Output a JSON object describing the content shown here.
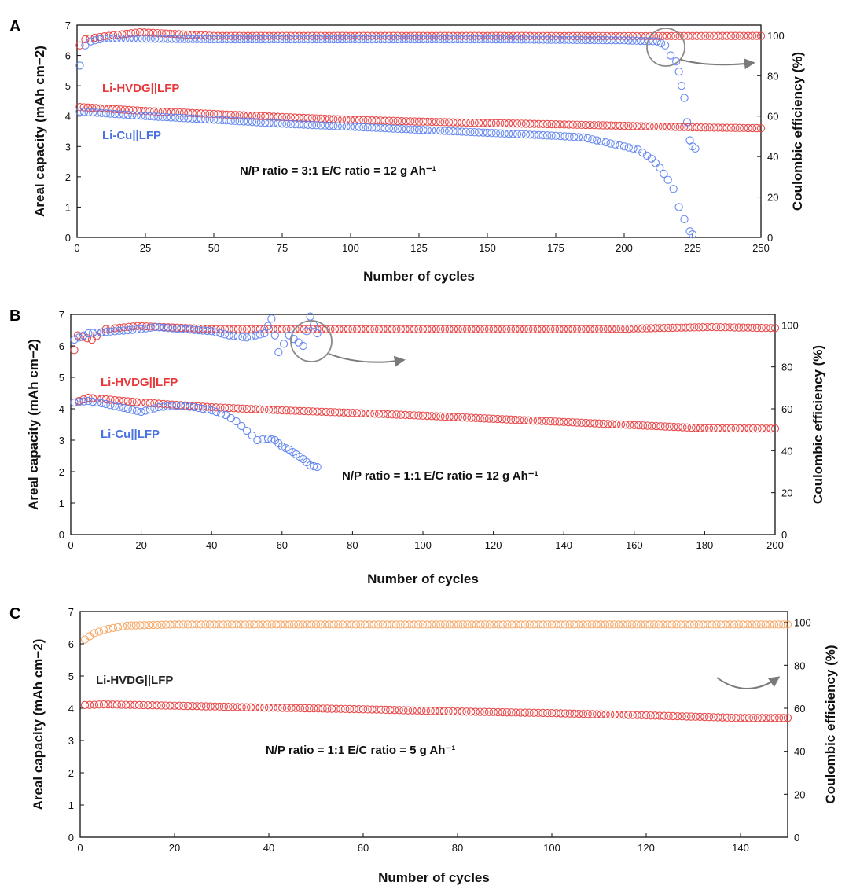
{
  "chart_data": [
    {
      "panel": "A",
      "type": "scatter",
      "xlabel": "Number of cycles",
      "ylabel_left": "Areal capacity (mAh cm−2)",
      "ylabel_right": "Coulombic efficiency (%)",
      "xlim": [
        0,
        250
      ],
      "ylim_left": [
        0,
        7
      ],
      "ylim_right": [
        0,
        105
      ],
      "xticks": [
        0,
        25,
        50,
        75,
        100,
        125,
        150,
        175,
        200,
        225,
        250
      ],
      "yticks_left": [
        0,
        1,
        2,
        3,
        4,
        5,
        6,
        7
      ],
      "yticks_right": [
        0,
        20,
        40,
        60,
        80,
        100
      ],
      "annotation": "N/P ratio = 3:1     E/C ratio = 12 g Ah⁻¹",
      "series": [
        {
          "name": "Li-HVDG||LFP",
          "label_color": "#e8383a",
          "marker_color": "#e8383a",
          "axis": "left",
          "label_shown": true,
          "points": [
            [
              1,
              4.3
            ],
            [
              10,
              4.25
            ],
            [
              25,
              4.17
            ],
            [
              50,
              4.07
            ],
            [
              75,
              3.97
            ],
            [
              100,
              3.88
            ],
            [
              125,
              3.82
            ],
            [
              150,
              3.77
            ],
            [
              175,
              3.73
            ],
            [
              200,
              3.68
            ],
            [
              225,
              3.63
            ],
            [
              250,
              3.6
            ]
          ]
        },
        {
          "name": "Li-HVDG||LFP CE",
          "marker_color": "#e8383a",
          "axis": "right",
          "label_shown": false,
          "points": [
            [
              1,
              95
            ],
            [
              3,
              98
            ],
            [
              10,
              99.5
            ],
            [
              23,
              101.5
            ],
            [
              50,
              99.7
            ],
            [
              100,
              99.7
            ],
            [
              150,
              99.7
            ],
            [
              200,
              99.6
            ],
            [
              250,
              99.7
            ]
          ]
        },
        {
          "name": "Li-Cu||LFP",
          "label_color": "#4a72e0",
          "marker_color": "#5a7ff0",
          "axis": "left",
          "label_shown": true,
          "points": [
            [
              1,
              4.15
            ],
            [
              25,
              4.0
            ],
            [
              50,
              3.88
            ],
            [
              75,
              3.75
            ],
            [
              100,
              3.65
            ],
            [
              125,
              3.55
            ],
            [
              150,
              3.45
            ],
            [
              175,
              3.35
            ],
            [
              185,
              3.3
            ],
            [
              195,
              3.1
            ],
            [
              205,
              2.9
            ],
            [
              210,
              2.6
            ],
            [
              213,
              2.3
            ],
            [
              216,
              1.9
            ],
            [
              218,
              1.6
            ],
            [
              220,
              1.0
            ],
            [
              222,
              0.6
            ],
            [
              224,
              0.2
            ],
            [
              225,
              0.1
            ]
          ]
        },
        {
          "name": "Li-Cu||LFP CE",
          "marker_color": "#5a7ff0",
          "axis": "right",
          "label_shown": false,
          "points": [
            [
              1,
              85
            ],
            [
              3,
              95
            ],
            [
              5,
              97
            ],
            [
              10,
              98.5
            ],
            [
              50,
              98
            ],
            [
              100,
              98
            ],
            [
              150,
              98
            ],
            [
              200,
              97.5
            ],
            [
              212,
              97
            ],
            [
              215,
              95
            ],
            [
              217,
              90
            ],
            [
              219,
              87
            ],
            [
              220,
              82
            ],
            [
              221,
              75
            ],
            [
              222,
              69
            ],
            [
              223,
              57
            ],
            [
              224,
              48
            ],
            [
              225,
              45
            ],
            [
              226,
              44
            ]
          ]
        }
      ]
    },
    {
      "panel": "B",
      "type": "scatter",
      "xlabel": "Number of cycles",
      "ylabel_left": "Areal capacity (mAh cm−2)",
      "ylabel_right": "Coulombic efficiency (%)",
      "xlim": [
        0,
        200
      ],
      "ylim_left": [
        0,
        7
      ],
      "ylim_right": [
        0,
        105
      ],
      "xticks": [
        0,
        20,
        40,
        60,
        80,
        100,
        120,
        140,
        160,
        180,
        200
      ],
      "yticks_left": [
        0,
        1,
        2,
        3,
        4,
        5,
        6,
        7
      ],
      "yticks_right": [
        0,
        20,
        40,
        60,
        80,
        100
      ],
      "annotation": "N/P ratio = 1:1     E/C ratio = 12 g Ah⁻¹",
      "series": [
        {
          "name": "Li-HVDG||LFP",
          "label_color": "#e8383a",
          "marker_color": "#e8383a",
          "axis": "left",
          "label_shown": true,
          "points": [
            [
              1,
              4.2
            ],
            [
              5,
              4.35
            ],
            [
              20,
              4.2
            ],
            [
              40,
              4.05
            ],
            [
              60,
              3.95
            ],
            [
              80,
              3.87
            ],
            [
              100,
              3.78
            ],
            [
              120,
              3.68
            ],
            [
              140,
              3.58
            ],
            [
              160,
              3.48
            ],
            [
              180,
              3.38
            ],
            [
              200,
              3.37
            ]
          ]
        },
        {
          "name": "Li-HVDG||LFP CE",
          "marker_color": "#e8383a",
          "axis": "right",
          "label_shown": false,
          "points": [
            [
              1,
              88
            ],
            [
              2,
              95
            ],
            [
              6,
              93
            ],
            [
              10,
              98
            ],
            [
              19,
              99.5
            ],
            [
              40,
              98
            ],
            [
              100,
              98
            ],
            [
              150,
              98
            ],
            [
              182,
              99
            ],
            [
              200,
              98.5
            ]
          ]
        },
        {
          "name": "Li-Cu||LFP",
          "label_color": "#4a72e0",
          "marker_color": "#5a7ff0",
          "axis": "left",
          "label_shown": true,
          "points": [
            [
              1,
              4.2
            ],
            [
              5,
              4.25
            ],
            [
              10,
              4.15
            ],
            [
              20,
              3.9
            ],
            [
              25,
              4.05
            ],
            [
              30,
              4.1
            ],
            [
              35,
              4.05
            ],
            [
              40,
              3.95
            ],
            [
              44,
              3.8
            ],
            [
              47,
              3.6
            ],
            [
              50,
              3.3
            ],
            [
              53,
              3.0
            ],
            [
              56,
              3.05
            ],
            [
              58,
              3.0
            ],
            [
              60,
              2.8
            ],
            [
              62,
              2.7
            ],
            [
              64,
              2.55
            ],
            [
              66,
              2.4
            ],
            [
              68,
              2.2
            ],
            [
              70,
              2.15
            ]
          ]
        },
        {
          "name": "Li-Cu||LFP CE",
          "marker_color": "#5a7ff0",
          "axis": "right",
          "label_shown": false,
          "points": [
            [
              1,
              93
            ],
            [
              5,
              96
            ],
            [
              20,
              98
            ],
            [
              24,
              99
            ],
            [
              40,
              97
            ],
            [
              45,
              95
            ],
            [
              50,
              94
            ],
            [
              55,
              96
            ],
            [
              57,
              103
            ],
            [
              59,
              87
            ],
            [
              62,
              95
            ],
            [
              66,
              90
            ],
            [
              68,
              104
            ],
            [
              70,
              96
            ]
          ]
        }
      ]
    },
    {
      "panel": "C",
      "type": "scatter",
      "xlabel": "Number of cycles",
      "ylabel_left": "Areal capacity (mAh cm−2)",
      "ylabel_right": "Coulombic efficiency (%)",
      "xlim": [
        0,
        150
      ],
      "ylim_left": [
        0,
        7
      ],
      "ylim_right": [
        0,
        105
      ],
      "xticks": [
        0,
        20,
        40,
        60,
        80,
        100,
        120,
        140
      ],
      "yticks_left": [
        0,
        1,
        2,
        3,
        4,
        5,
        6,
        7
      ],
      "yticks_right": [
        0,
        20,
        40,
        60,
        80,
        100
      ],
      "annotation": "N/P ratio = 1:1      E/C ratio = 5 g Ah⁻¹",
      "series": [
        {
          "name": "Li-HVDG||LFP",
          "label_color": "#222222",
          "marker_color": "#e8383a",
          "axis": "left",
          "label_shown": true,
          "points": [
            [
              1,
              4.1
            ],
            [
              5,
              4.12
            ],
            [
              20,
              4.08
            ],
            [
              40,
              4.02
            ],
            [
              60,
              3.97
            ],
            [
              80,
              3.9
            ],
            [
              100,
              3.85
            ],
            [
              120,
              3.78
            ],
            [
              140,
              3.7
            ],
            [
              150,
              3.7
            ]
          ]
        },
        {
          "name": "Li-HVDG||LFP CE",
          "marker_color": "#f5a15c",
          "axis": "right",
          "label_shown": false,
          "points": [
            [
              1,
              92
            ],
            [
              3,
              95
            ],
            [
              6,
              97
            ],
            [
              10,
              98.5
            ],
            [
              20,
              99
            ],
            [
              50,
              99
            ],
            [
              100,
              99
            ],
            [
              150,
              99
            ]
          ]
        }
      ]
    }
  ]
}
